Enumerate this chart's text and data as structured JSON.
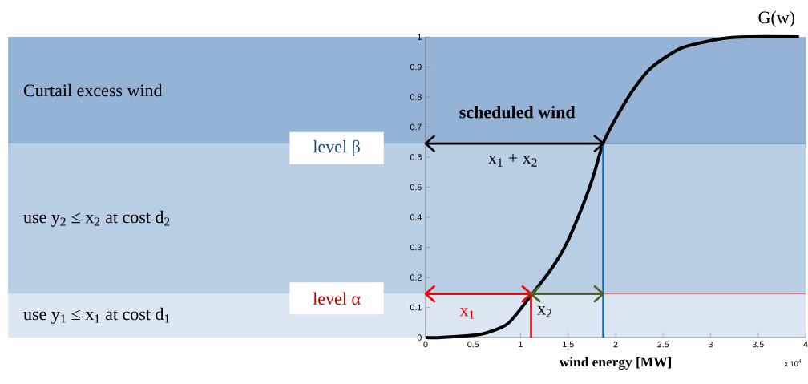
{
  "chart_data": {
    "type": "line",
    "xlabel": "wind energy [MW]",
    "xlim": [
      0,
      4
    ],
    "ylim": [
      0,
      1
    ],
    "xticks": [
      0,
      0.5,
      1,
      1.5,
      2,
      2.5,
      3,
      3.5,
      4
    ],
    "yticks": [
      0,
      0.1,
      0.2,
      0.3,
      0.4,
      0.5,
      0.6,
      0.7,
      0.8,
      0.9,
      1
    ],
    "grid": false,
    "marker": "none",
    "line_style": "solid",
    "series": [
      {
        "name": "G(w)",
        "color": "#000000",
        "x": [
          0,
          0.16,
          0.585,
          0.866,
          1.11,
          1.315,
          1.484,
          1.653,
          1.765,
          1.864,
          1.99,
          2.187,
          2.384,
          2.693,
          3.115,
          3.396,
          3.93
        ],
        "values": [
          0,
          0,
          0.011,
          0.046,
          0.14,
          0.224,
          0.313,
          0.438,
          0.536,
          0.642,
          0.722,
          0.825,
          0.9,
          0.963,
          0.994,
          1,
          1
        ]
      },
      {
        "color": "#ff0000",
        "x": [
          1.11,
          1.11
        ],
        "values": [
          0,
          0.145
        ]
      },
      {
        "color": "#0070c0",
        "x": [
          1.87,
          1.87
        ],
        "values": [
          0,
          0.645
        ]
      },
      {
        "color": "#ff0000",
        "x": [
          0,
          1.11
        ],
        "values": [
          0.145,
          0.145
        ]
      },
      {
        "color": "#4f6228",
        "x": [
          1.11,
          1.87
        ],
        "values": [
          0.145,
          0.145
        ]
      },
      {
        "color": "#000000",
        "x": [
          0,
          1.87
        ],
        "values": [
          0.645,
          0.645
        ]
      }
    ],
    "bands": [
      {
        "axis": "y",
        "from": 0,
        "to": 0.145,
        "label": "use  y$_{1}$ ≤ x$_{1}$  at cost  d$_{1}$",
        "color": "#dce6f2"
      },
      {
        "axis": "y",
        "from": 0.145,
        "to": 0.645,
        "label": "use  y$_{2}$ ≤ x$_{2}$  at cost  d$_{2}$",
        "color": "#b9cde5"
      },
      {
        "axis": "y",
        "from": 0.645,
        "to": 1,
        "label": "Curtail excess wind",
        "color": "#95b3d7"
      }
    ],
    "ref_lines": [
      {
        "axis": "y",
        "value": 0.145,
        "label": "level α",
        "color": "#c00000"
      },
      {
        "axis": "y",
        "value": 0.645,
        "label": "level β",
        "color": "#1f497d"
      }
    ],
    "annotations": [
      "scheduled wind",
      "x$_{1}$ + x$_{2}$",
      "x$_{1}$",
      "x$_{2}$",
      "x 10$^{4}$"
    ]
  }
}
